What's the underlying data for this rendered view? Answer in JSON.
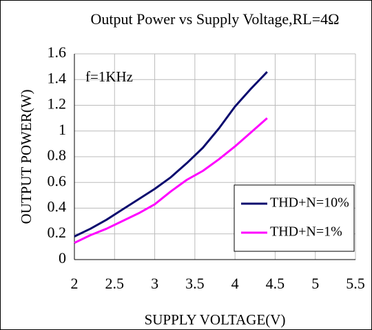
{
  "chart_data": {
    "type": "line",
    "title": "Output Power vs Supply Voltage,RL=4Ω",
    "x_label": "SUPPLY VOLTAGE(V)",
    "y_label": "OUTPUT POWER(W)",
    "annotation": "f=1KHz",
    "x": [
      2,
      2.2,
      2.4,
      2.6,
      2.8,
      3,
      3.2,
      3.4,
      3.6,
      3.8,
      4,
      4.2,
      4.4
    ],
    "series": [
      {
        "name": "THD+N=10%",
        "color": "#0a0a6e",
        "values": [
          0.18,
          0.24,
          0.31,
          0.39,
          0.47,
          0.55,
          0.64,
          0.75,
          0.87,
          1.02,
          1.19,
          1.33,
          1.46
        ]
      },
      {
        "name": "THD+N=1%",
        "color": "#ff00ff",
        "values": [
          0.13,
          0.19,
          0.24,
          0.3,
          0.36,
          0.43,
          0.53,
          0.62,
          0.69,
          0.78,
          0.88,
          0.99,
          1.1
        ]
      }
    ],
    "xlim": [
      2,
      5.5
    ],
    "xticks": [
      2,
      2.5,
      3,
      3.5,
      4,
      4.5,
      5,
      5.5
    ],
    "ylim": [
      0,
      1.6
    ],
    "yticks": [
      0,
      0.2,
      0.4,
      0.6,
      0.8,
      1,
      1.2,
      1.4,
      1.6
    ],
    "grid": true,
    "legend": "lower right"
  }
}
